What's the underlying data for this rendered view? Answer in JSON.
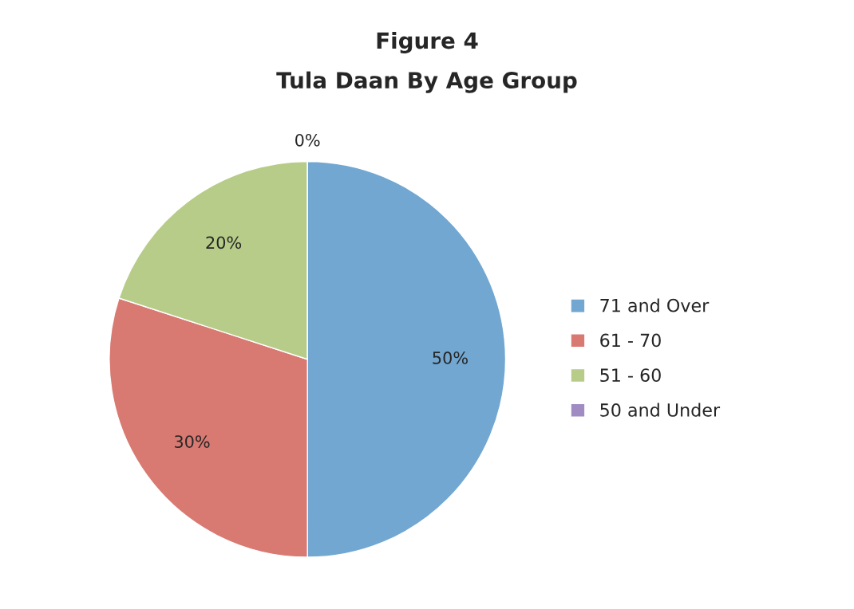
{
  "chart_data": {
    "type": "pie",
    "title": "Figure 4",
    "subtitle": "Tula Daan By Age Group",
    "categories": [
      "71 and Over",
      "61 - 70",
      "51 - 60",
      "50 and Under"
    ],
    "values": [
      50,
      30,
      20,
      0
    ],
    "value_labels": [
      "50%",
      "30%",
      "20%",
      "0%"
    ],
    "colors": [
      "#71a7d1",
      "#d97a72",
      "#b6cc88",
      "#a08cc2"
    ],
    "legend": "right"
  }
}
